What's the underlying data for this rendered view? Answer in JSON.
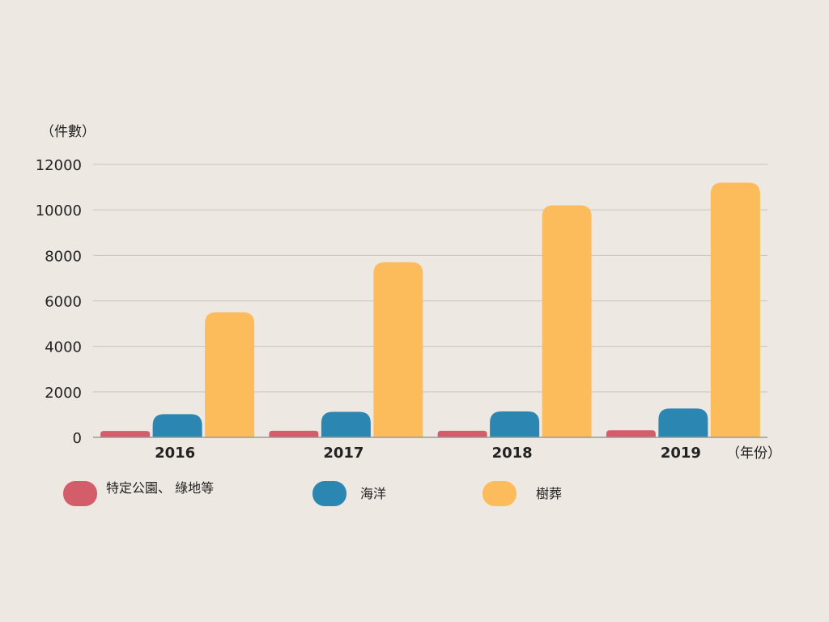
{
  "chart_data": {
    "type": "bar",
    "ylabel": "（件數）",
    "xlabel": "（年份）",
    "categories": [
      "2016",
      "2017",
      "2018",
      "2019"
    ],
    "ylim": [
      0,
      12000
    ],
    "yticks": [
      "0",
      "2000",
      "4000",
      "6000",
      "8000",
      "10000",
      "12000"
    ],
    "grid": true,
    "legend_position": "bottom",
    "series": [
      {
        "name": "特定公園、 綠地等",
        "color": "#d45d6c",
        "values": [
          280,
          290,
          290,
          310
        ]
      },
      {
        "name": "海洋",
        "color": "#2b87b2",
        "values": [
          1020,
          1120,
          1140,
          1270
        ]
      },
      {
        "name": "樹葬",
        "color": "#fdbc5c",
        "values": [
          5500,
          7700,
          10200,
          11200
        ]
      }
    ]
  }
}
